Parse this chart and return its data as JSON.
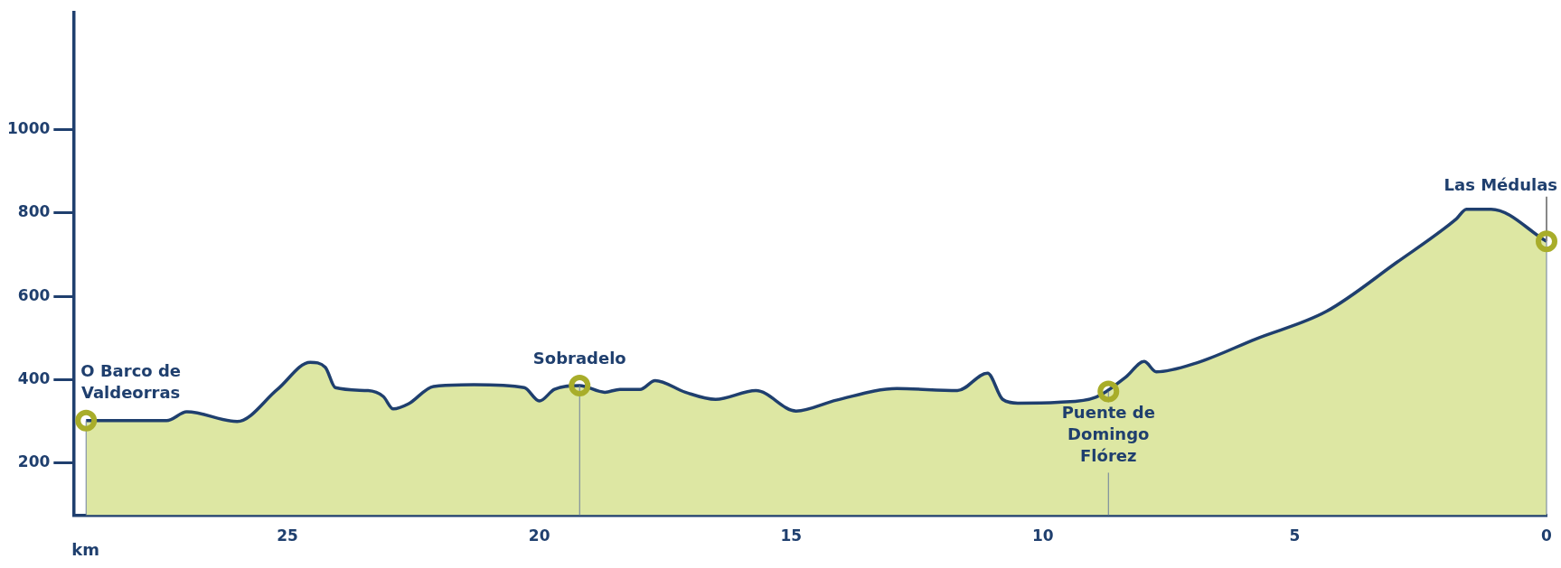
{
  "chart_data": {
    "type": "line",
    "xlabel": "km",
    "x": [
      29.0,
      27.4,
      27.0,
      26.0,
      25.2,
      24.55,
      24.25,
      24.05,
      23.4,
      23.1,
      22.9,
      22.6,
      22.1,
      21.3,
      20.3,
      20.0,
      19.7,
      19.2,
      18.7,
      18.4,
      18.0,
      17.7,
      17.1,
      16.5,
      15.7,
      14.9,
      14.1,
      12.9,
      11.7,
      11.1,
      10.8,
      10.5,
      9.7,
      8.95,
      8.35,
      7.99,
      7.75,
      6.96,
      5.77,
      4.37,
      2.98,
      1.79,
      1.59,
      1.1,
      0
    ],
    "series": [
      {
        "type": "area",
        "color": "#dde7a3",
        "values": [
          302,
          302,
          323,
          300,
          377,
          442,
          430,
          381,
          374,
          360,
          330,
          342,
          384,
          388,
          381,
          349,
          377,
          386,
          370,
          377,
          377,
          398,
          370,
          353,
          374,
          325,
          351,
          379,
          374,
          416,
          353,
          344,
          346,
          358,
          407,
          444,
          419,
          440,
          498,
          564,
          681,
          786,
          809,
          809,
          732
        ]
      },
      {
        "color": "#1f3f6e",
        "values": [
          302,
          302,
          323,
          300,
          377,
          442,
          430,
          381,
          374,
          360,
          330,
          342,
          384,
          388,
          381,
          349,
          377,
          386,
          370,
          377,
          377,
          398,
          370,
          353,
          374,
          325,
          351,
          379,
          374,
          416,
          353,
          344,
          346,
          358,
          407,
          444,
          419,
          440,
          498,
          564,
          681,
          786,
          809,
          809,
          732
        ]
      }
    ],
    "annotations": [
      {
        "text": "O Barco de Valdeorras",
        "x": 29.0,
        "y": 302
      },
      {
        "text": "Sobradelo",
        "x": 19.2,
        "y": 386
      },
      {
        "text": "Puente de Domingo Flórez",
        "x": 8.7,
        "y": 372
      },
      {
        "text": "Las Médulas",
        "x": 0,
        "y": 732
      }
    ],
    "xlim": [
      29.25,
      0
    ],
    "xticks": [
      0,
      5,
      10,
      15,
      20,
      25
    ],
    "ylim": [
      75,
      1280
    ],
    "yticks": [
      200,
      400,
      600,
      800,
      1000
    ],
    "grid": false,
    "legend": false,
    "marker": "none"
  }
}
